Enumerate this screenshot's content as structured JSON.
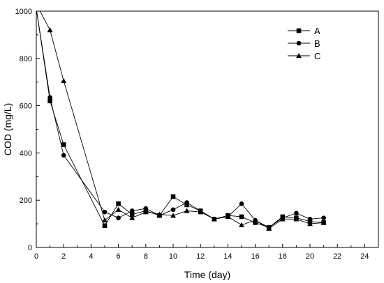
{
  "chart_data": {
    "type": "line",
    "xlabel": "Time (day)",
    "ylabel": "COD (mg/L)",
    "xlim": [
      0,
      25
    ],
    "ylim": [
      0,
      1000
    ],
    "xticks": [
      0,
      2,
      4,
      6,
      8,
      10,
      12,
      14,
      16,
      18,
      20,
      22,
      24
    ],
    "yticks": [
      0,
      200,
      400,
      600,
      800,
      1000
    ],
    "grid": false,
    "legend_position": "top-right",
    "series": [
      {
        "name": "A",
        "marker": "square",
        "x": [
          0,
          1,
          2,
          5,
          6,
          7,
          8,
          9,
          10,
          11,
          12,
          13,
          14,
          15,
          16,
          17,
          18,
          19,
          20,
          21
        ],
        "y": [
          1010,
          620,
          435,
          92,
          185,
          140,
          155,
          135,
          215,
          180,
          155,
          120,
          135,
          130,
          105,
          85,
          130,
          125,
          110,
          105
        ]
      },
      {
        "name": "B",
        "marker": "circle",
        "x": [
          0,
          1,
          2,
          5,
          6,
          7,
          8,
          9,
          10,
          11,
          12,
          13,
          14,
          15,
          16,
          17,
          18,
          19,
          20,
          21
        ],
        "y": [
          1010,
          635,
          390,
          150,
          125,
          155,
          165,
          135,
          160,
          190,
          155,
          120,
          130,
          185,
          115,
          85,
          125,
          145,
          120,
          125
        ]
      },
      {
        "name": "C",
        "marker": "triangle",
        "x": [
          0,
          1,
          2,
          5,
          6,
          7,
          8,
          9,
          10,
          11,
          12,
          13,
          14,
          15,
          16,
          17,
          18,
          19,
          20,
          21
        ],
        "y": [
          1030,
          920,
          705,
          115,
          160,
          125,
          150,
          140,
          135,
          155,
          150,
          120,
          130,
          95,
          115,
          80,
          120,
          120,
          100,
          105
        ]
      }
    ]
  }
}
